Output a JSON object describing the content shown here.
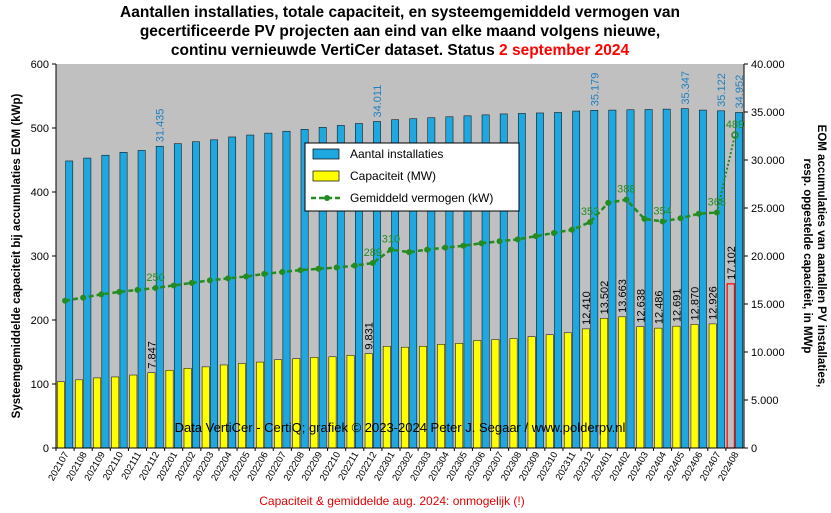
{
  "title": {
    "line1": "Aantallen installaties,  totale capaciteit,  en systeemgemiddeld  vermogen van",
    "line2": "gecertificeerde  PV projecten aan eind van elke maand volgens nieuwe,",
    "line3_prefix": "continu  vernieuwde  VertiCer dataset. Status ",
    "line3_status": "2 september 2024"
  },
  "axes": {
    "left_title": "Systeemgemiddelde capaciteit bij accumulaties EOM (kWp)",
    "right_title_line1": "EOM accumulaties van aantallen PV installaties,",
    "right_title_line2": "resp. opgestelde capaciteit, in MWp",
    "left_ticks": [
      "0",
      "100",
      "200",
      "300",
      "400",
      "500",
      "600"
    ],
    "right_ticks": [
      "0",
      "5.000",
      "10.000",
      "15.000",
      "20.000",
      "25.000",
      "30.000",
      "35.000",
      "40.000"
    ]
  },
  "legend": {
    "installaties": "Aantal installaties",
    "capaciteit": "Capaciteit (MW)",
    "vermogen": "Gemiddeld vermogen (kW)"
  },
  "credit": "Data VertiCer - CertiQ; grafiek © 2023-2024 Peter J. Segaar / www.polderpv.nl",
  "footnote": "Capaciteit & gemiddelde aug. 2024: onmogelijk (!)",
  "colors": {
    "plot_bg": "#c0c0c0",
    "installaties": "#1fa7e0",
    "capaciteit": "#ffff00",
    "vermogen": "#228B22",
    "last_capacity_outline": "#ff0000",
    "status_red": "#ff0000",
    "label_blue": "#1f7fc0"
  },
  "chart_data": {
    "type": "bar",
    "categories": [
      "202107",
      "202108",
      "202109",
      "202110",
      "202111",
      "202112",
      "202201",
      "202202",
      "202203",
      "202204",
      "202205",
      "202206",
      "202207",
      "202208",
      "202209",
      "202210",
      "202211",
      "202212",
      "202301",
      "202302",
      "202303",
      "202304",
      "202305",
      "202306",
      "202307",
      "202308",
      "202309",
      "202310",
      "202311",
      "202312",
      "202401",
      "202402",
      "202403",
      "202404",
      "202405",
      "202406",
      "202407",
      "202408"
    ],
    "series": [
      {
        "name": "Aantal installaties",
        "axis": "right",
        "unit": "installaties",
        "values": [
          29900,
          30200,
          30500,
          30800,
          31000,
          31435,
          31700,
          31900,
          32100,
          32400,
          32600,
          32800,
          33000,
          33200,
          33400,
          33600,
          33800,
          34011,
          34200,
          34300,
          34400,
          34500,
          34600,
          34700,
          34800,
          34850,
          34900,
          34950,
          35100,
          35179,
          35200,
          35230,
          35260,
          35300,
          35347,
          35200,
          35122,
          34952
        ],
        "labels": {
          "202112": "31.435",
          "202212": "34.011",
          "202312": "35.179",
          "202405": "35.347",
          "202407": "35.122",
          "202408": "34.952"
        }
      },
      {
        "name": "Capaciteit (MW)",
        "axis": "right",
        "unit": "MW",
        "values": [
          6900,
          7100,
          7300,
          7400,
          7600,
          7847,
          8100,
          8300,
          8450,
          8650,
          8800,
          8950,
          9200,
          9300,
          9450,
          9500,
          9650,
          9831,
          10600,
          10500,
          10600,
          10800,
          10900,
          11200,
          11300,
          11400,
          11600,
          11800,
          12000,
          12410,
          13502,
          13663,
          12638,
          12486,
          12691,
          12870,
          12926,
          17102
        ],
        "labels": {
          "202112": "7.847",
          "202212": "9.831",
          "202312": "12.410",
          "202401": "13.502",
          "202402": "13.663",
          "202403": "12.638",
          "202404": "12.486",
          "202405": "12.691",
          "202406": "12.870",
          "202407": "12.926",
          "202408": "17.102"
        }
      },
      {
        "name": "Gemiddeld vermogen (kW)",
        "axis": "left",
        "unit": "kW",
        "values": [
          230,
          235,
          240,
          244,
          247,
          250,
          254,
          258,
          262,
          265,
          268,
          272,
          275,
          278,
          280,
          282,
          285,
          289,
          310,
          306,
          310,
          313,
          316,
          320,
          323,
          326,
          331,
          336,
          341,
          353,
          383,
          388,
          358,
          354,
          359,
          366,
          368,
          489
        ],
        "labels": {
          "202112": "250",
          "202212": "289",
          "202301": "310",
          "202312": "353",
          "202402": "388",
          "202404": "354",
          "202407": "368",
          "202408": "489"
        }
      }
    ],
    "ylim_left": [
      0,
      600
    ],
    "ylim_right": [
      0,
      40000
    ],
    "legend_position": "top-center",
    "grid": false
  }
}
